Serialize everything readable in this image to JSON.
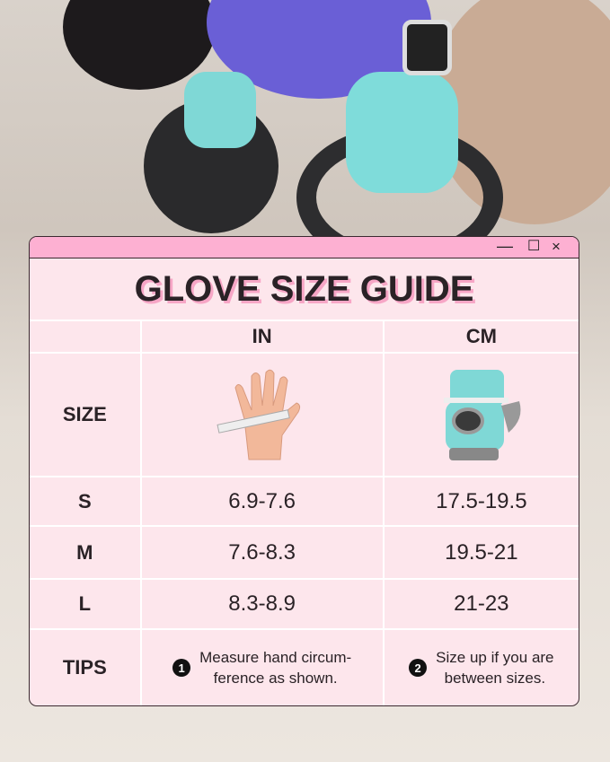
{
  "window_controls": {
    "minimize": "—",
    "maximize": "☐",
    "close": "×"
  },
  "title": "GLOVE SIZE GUIDE",
  "headers": {
    "in": "IN",
    "cm": "CM"
  },
  "size_label": "SIZE",
  "rows": [
    {
      "size": "S",
      "in": "6.9-7.6",
      "cm": "17.5-19.5"
    },
    {
      "size": "M",
      "in": "7.6-8.3",
      "cm": "19.5-21"
    },
    {
      "size": "L",
      "in": "8.3-8.9",
      "cm": "21-23"
    }
  ],
  "tips": {
    "label": "TIPS",
    "tip1_num": "1",
    "tip1_line1": "Measure hand circum-",
    "tip1_line2": "ference as shown.",
    "tip2_num": "2",
    "tip2_line1": "Size up if you are",
    "tip2_line2": "between sizes."
  },
  "colors": {
    "titlebar": "#fdb0d2",
    "card": "#fde6ec",
    "glove": "#7fd8d6"
  }
}
